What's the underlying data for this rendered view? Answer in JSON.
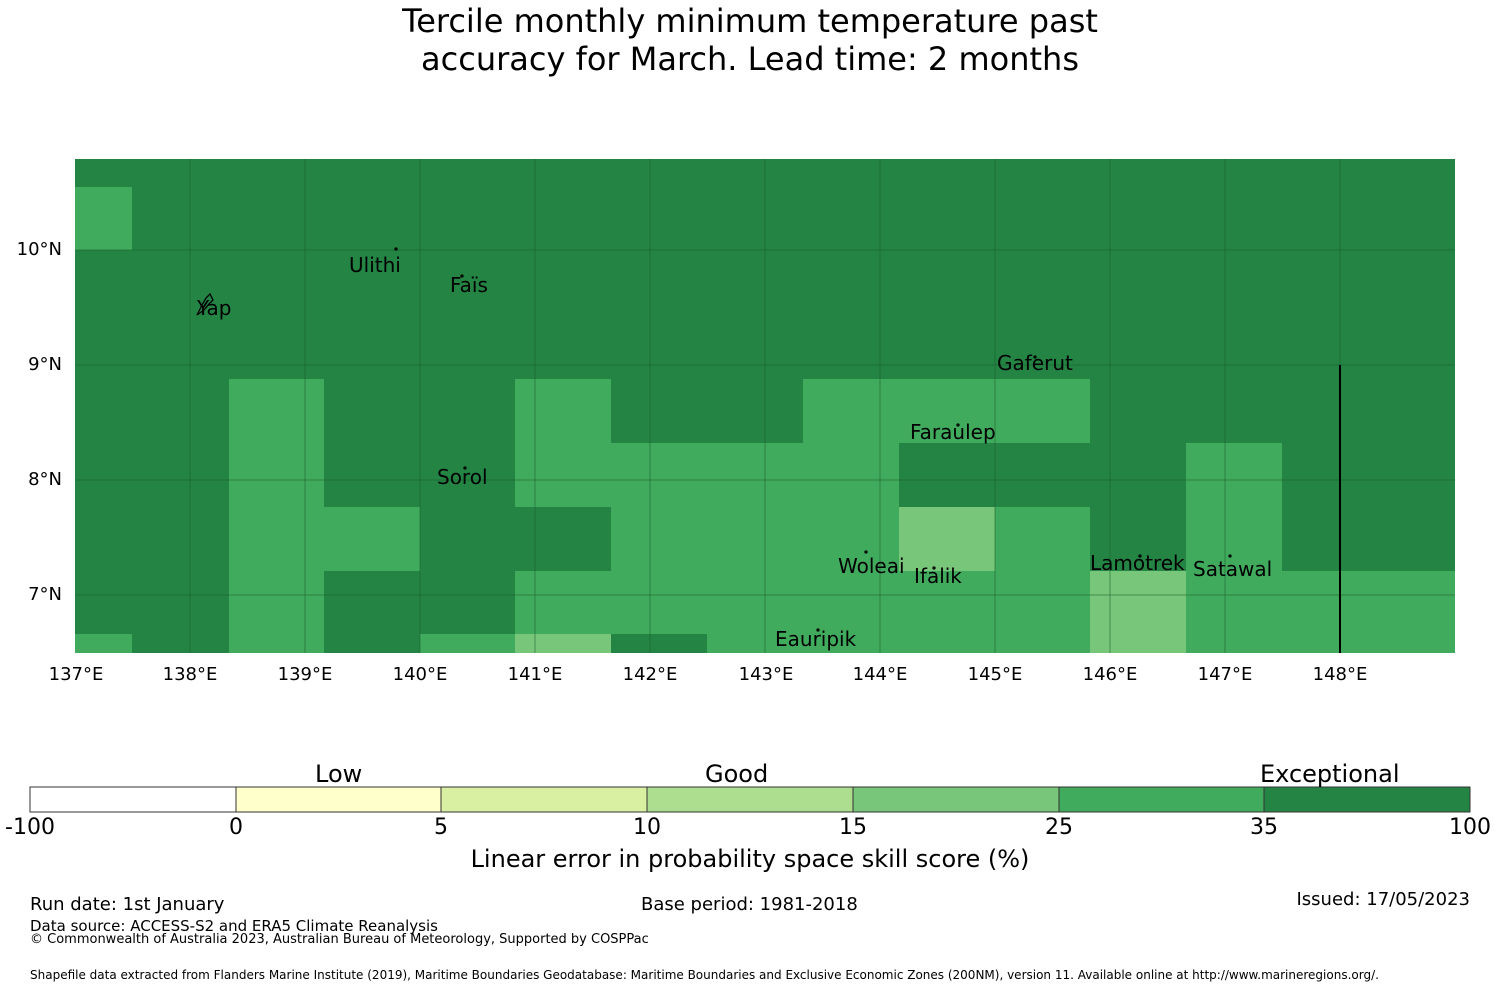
{
  "title_line1": "Tercile monthly minimum temperature past",
  "title_line2": "accuracy for March. Lead time: 2 months",
  "map": {
    "lat_range": [
      6.5,
      10.8
    ],
    "lon_range": [
      137.0,
      149.0
    ],
    "lat_labels": [
      "10°N",
      "9°N",
      "8°N",
      "7°N"
    ],
    "lon_labels": [
      "137°E",
      "138°E",
      "139°E",
      "140°E",
      "141°E",
      "142°E",
      "143°E",
      "144°E",
      "145°E",
      "146°E",
      "147°E",
      "148°E"
    ],
    "places": [
      {
        "name": "Yap"
      },
      {
        "name": "Ulithi"
      },
      {
        "name": "Faïs"
      },
      {
        "name": "Gaferut"
      },
      {
        "name": "Faraulep"
      },
      {
        "name": "Sorol"
      },
      {
        "name": "Woleai"
      },
      {
        "name": "Ifalik"
      },
      {
        "name": "Lamotrek"
      },
      {
        "name": "Satawal"
      },
      {
        "name": "Eauripik"
      }
    ]
  },
  "colorbar": {
    "categories": [
      "Low",
      "Good",
      "Exceptional"
    ],
    "ticks": [
      "-100",
      "0",
      "5",
      "10",
      "15",
      "25",
      "35",
      "100"
    ],
    "colors": [
      "#ffffff",
      "#ffffcc",
      "#d9f0a3",
      "#addd8e",
      "#78c679",
      "#41ab5d",
      "#238443"
    ],
    "title": "Linear error in probability space skill score (%)"
  },
  "footer": {
    "run_date": "Run date: 1st January",
    "data_source": "Data source: ACCESS-S2 and ERA5 Climate Reanalysis",
    "copyright": "© Commonwealth of Australia 2023, Australian Bureau of Meteorology, Supported by COSPPac",
    "base_period": "Base period: 1981-2018",
    "issued": "Issued: 17/05/2023",
    "shapefile": "Shapefile data extracted from Flanders Marine Institute (2019), Maritime Boundaries Geodatabase: Maritime Boundaries and Exclusive Economic Zones (200NM), version 11. Available online at http://www.marineregions.org/."
  }
}
